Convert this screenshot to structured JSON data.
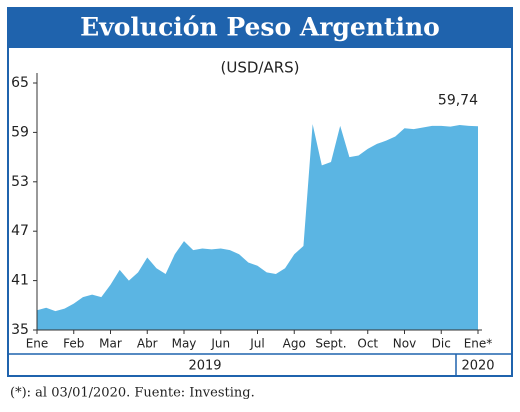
{
  "chart_data": {
    "type": "area",
    "title": "Evolución Peso Argentino",
    "subtitle": "(USD/ARS)",
    "footnote": "(*): al 03/01/2020. Fuente: Investing.",
    "years": [
      "2019",
      "2020"
    ],
    "categories": [
      "Ene",
      null,
      null,
      null,
      "Feb",
      null,
      null,
      null,
      "Mar",
      null,
      null,
      null,
      "Abr",
      null,
      null,
      null,
      "May",
      null,
      null,
      null,
      "Jun",
      null,
      null,
      null,
      "Jul",
      null,
      null,
      null,
      "Ago",
      null,
      null,
      null,
      "Sept.",
      null,
      null,
      null,
      "Oct",
      null,
      null,
      null,
      "Nov",
      null,
      null,
      null,
      "Dic",
      null,
      null,
      null,
      "Ene*"
    ],
    "values": [
      37.4,
      37.7,
      37.3,
      37.6,
      38.2,
      39.0,
      39.3,
      39.0,
      40.5,
      42.3,
      41.0,
      42.0,
      43.8,
      42.5,
      41.8,
      44.2,
      45.8,
      44.7,
      44.9,
      44.8,
      44.9,
      44.7,
      44.2,
      43.2,
      42.8,
      42.0,
      41.8,
      42.5,
      44.2,
      45.2,
      60.0,
      55.0,
      55.4,
      59.8,
      56.0,
      56.2,
      57.0,
      57.6,
      58.0,
      58.5,
      59.5,
      59.4,
      59.6,
      59.8,
      59.8,
      59.7,
      59.9,
      59.8,
      59.74
    ],
    "value_labels": [
      null,
      null,
      null,
      null,
      null,
      null,
      null,
      null,
      null,
      null,
      null,
      null,
      null,
      null,
      null,
      null,
      null,
      null,
      null,
      null,
      null,
      null,
      null,
      null,
      null,
      null,
      null,
      null,
      null,
      null,
      null,
      null,
      null,
      null,
      null,
      null,
      null,
      null,
      null,
      null,
      null,
      null,
      null,
      null,
      null,
      null,
      null,
      null,
      "59,74"
    ],
    "color": "#5bb5e3",
    "ylim": [
      35,
      65
    ],
    "yticks": [
      35,
      41,
      47,
      53,
      59,
      65
    ],
    "grid": false
  }
}
